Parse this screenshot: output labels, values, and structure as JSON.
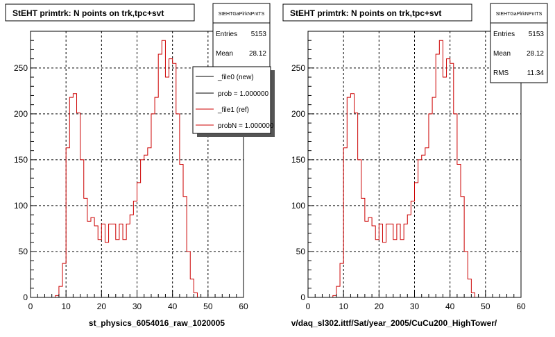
{
  "colors": {
    "ref": "#cc0000",
    "new": "#000000",
    "grid": "#000000"
  },
  "chart_data": [
    {
      "type": "line",
      "title": "StEHT primtrk: N points on trk,tpc+svt",
      "xlim": [
        0,
        60
      ],
      "ylim": [
        0,
        290
      ],
      "x_ticks": [
        0,
        10,
        20,
        30,
        40,
        50,
        60
      ],
      "y_ticks": [
        0,
        50,
        100,
        150,
        200,
        250
      ],
      "grid": true,
      "stats": {
        "header": "StEHTGaPlrkNPntTS",
        "entries_label": "Entries",
        "entries_value": "5153",
        "mean_label": "Mean",
        "mean_value": "28.12"
      },
      "legend": {
        "placement": "top-right",
        "entries": [
          {
            "label": "_file0 (new)",
            "color": "#000000"
          },
          {
            "label": "prob = 1.000000",
            "color": "#000000"
          },
          {
            "label": "_file1 (ref)",
            "color": "#cc0000"
          },
          {
            "label": "probN = 1.000000",
            "color": "#cc0000"
          }
        ]
      },
      "xlabel": "st_physics_6054016_raw_1020005",
      "series": [
        {
          "color": "#cc0000",
          "bin_width": 1,
          "x": [
            0,
            1,
            2,
            3,
            4,
            5,
            6,
            7,
            8,
            9,
            10,
            11,
            12,
            13,
            14,
            15,
            16,
            17,
            18,
            19,
            20,
            21,
            22,
            23,
            24,
            25,
            26,
            27,
            28,
            29,
            30,
            31,
            32,
            33,
            34,
            35,
            36,
            37,
            38,
            39,
            40,
            41,
            42,
            43,
            44,
            45,
            46,
            47,
            48,
            49
          ],
          "values": [
            0,
            0,
            0,
            0,
            0,
            0,
            0,
            2,
            12,
            37,
            163,
            218,
            222,
            201,
            150,
            108,
            83,
            87,
            78,
            63,
            80,
            60,
            80,
            80,
            63,
            80,
            63,
            80,
            90,
            105,
            125,
            150,
            155,
            163,
            200,
            218,
            265,
            280,
            240,
            260,
            255,
            200,
            145,
            110,
            50,
            20,
            5,
            0,
            0,
            0
          ]
        }
      ]
    },
    {
      "type": "line",
      "title": "StEHT primtrk: N points on trk,tpc+svt",
      "xlim": [
        0,
        60
      ],
      "ylim": [
        0,
        290
      ],
      "x_ticks": [
        0,
        10,
        20,
        30,
        40,
        50,
        60
      ],
      "y_ticks": [
        0,
        50,
        100,
        150,
        200,
        250
      ],
      "grid": true,
      "stats": {
        "header": "StEHTGaPlrkNPntTS",
        "entries_label": "Entries",
        "entries_value": "5153",
        "mean_label": "Mean",
        "mean_value": "28.12",
        "rms_label": "RMS",
        "rms_value": "11.34"
      },
      "xlabel": "v/daq_sl302.ittf/Sat/year_2005/CuCu200_HighTower/",
      "series": [
        {
          "color": "#cc0000",
          "bin_width": 1,
          "x": [
            0,
            1,
            2,
            3,
            4,
            5,
            6,
            7,
            8,
            9,
            10,
            11,
            12,
            13,
            14,
            15,
            16,
            17,
            18,
            19,
            20,
            21,
            22,
            23,
            24,
            25,
            26,
            27,
            28,
            29,
            30,
            31,
            32,
            33,
            34,
            35,
            36,
            37,
            38,
            39,
            40,
            41,
            42,
            43,
            44,
            45,
            46,
            47,
            48,
            49
          ],
          "values": [
            0,
            0,
            0,
            0,
            0,
            0,
            0,
            2,
            12,
            37,
            163,
            218,
            222,
            201,
            150,
            108,
            83,
            87,
            78,
            63,
            80,
            60,
            80,
            80,
            63,
            80,
            63,
            80,
            90,
            105,
            125,
            150,
            155,
            163,
            200,
            218,
            265,
            280,
            240,
            260,
            255,
            200,
            145,
            110,
            50,
            20,
            5,
            0,
            0,
            0
          ]
        }
      ]
    }
  ]
}
